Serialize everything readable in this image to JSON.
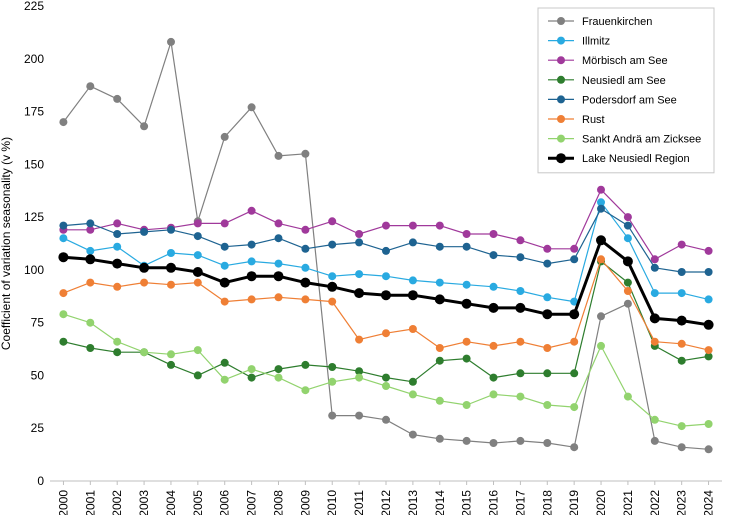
{
  "chart_data": {
    "type": "line",
    "ylabel": "Coefficient of variation seasonality (v %)",
    "ylim": [
      0,
      225
    ],
    "yticks": [
      0,
      25,
      50,
      75,
      100,
      125,
      150,
      175,
      200,
      225
    ],
    "grid": false,
    "legend_position": "top-right",
    "x": [
      "2000",
      "2001",
      "2002",
      "2003",
      "2004",
      "2005",
      "2006",
      "2007",
      "2008",
      "2009",
      "2010",
      "2011",
      "2012",
      "2013",
      "2014",
      "2015",
      "2016",
      "2017",
      "2018",
      "2019",
      "2020",
      "2021",
      "2022",
      "2023",
      "2024"
    ],
    "series": [
      {
        "name": "Frauenkirchen",
        "color": "#808080",
        "bold": false,
        "values": [
          170,
          187,
          181,
          168,
          208,
          123,
          163,
          177,
          154,
          155,
          31,
          31,
          29,
          22,
          20,
          19,
          18,
          19,
          18,
          16,
          78,
          84,
          19,
          16,
          15
        ]
      },
      {
        "name": "Illmitz",
        "color": "#29aae1",
        "bold": false,
        "values": [
          115,
          109,
          111,
          102,
          108,
          107,
          102,
          104,
          103,
          101,
          97,
          98,
          97,
          95,
          94,
          93,
          92,
          90,
          87,
          85,
          132,
          115,
          89,
          89,
          86
        ]
      },
      {
        "name": "Mörbisch am See",
        "color": "#a0399b",
        "bold": false,
        "values": [
          119,
          119,
          122,
          119,
          120,
          122,
          122,
          128,
          122,
          119,
          123,
          117,
          121,
          121,
          121,
          117,
          117,
          114,
          110,
          110,
          138,
          125,
          105,
          112,
          109
        ]
      },
      {
        "name": "Neusiedl am See",
        "color": "#2e7d2e",
        "bold": false,
        "values": [
          66,
          63,
          61,
          61,
          55,
          50,
          56,
          49,
          53,
          55,
          54,
          52,
          49,
          47,
          57,
          58,
          49,
          51,
          51,
          51,
          104,
          94,
          64,
          57,
          59
        ]
      },
      {
        "name": "Podersdorf am See",
        "color": "#1e6391",
        "bold": false,
        "values": [
          121,
          122,
          117,
          118,
          119,
          116,
          111,
          112,
          115,
          110,
          112,
          113,
          109,
          113,
          111,
          111,
          107,
          106,
          103,
          105,
          129,
          121,
          101,
          99,
          99
        ]
      },
      {
        "name": "Rust",
        "color": "#ef7f35",
        "bold": false,
        "values": [
          89,
          94,
          92,
          94,
          93,
          94,
          85,
          86,
          87,
          86,
          85,
          67,
          70,
          72,
          63,
          66,
          64,
          66,
          63,
          66,
          105,
          90,
          66,
          65,
          62
        ]
      },
      {
        "name": "Sankt Andrä am Zicksee",
        "color": "#92d36e",
        "bold": false,
        "values": [
          79,
          75,
          66,
          61,
          60,
          62,
          48,
          53,
          49,
          43,
          47,
          49,
          45,
          41,
          38,
          36,
          41,
          40,
          36,
          35,
          64,
          40,
          29,
          26,
          27
        ]
      },
      {
        "name": "Lake Neusiedl Region",
        "color": "#000000",
        "bold": true,
        "values": [
          106,
          105,
          103,
          101,
          101,
          99,
          94,
          97,
          97,
          94,
          92,
          89,
          88,
          88,
          86,
          84,
          82,
          82,
          79,
          79,
          114,
          104,
          77,
          76,
          74
        ]
      }
    ]
  }
}
